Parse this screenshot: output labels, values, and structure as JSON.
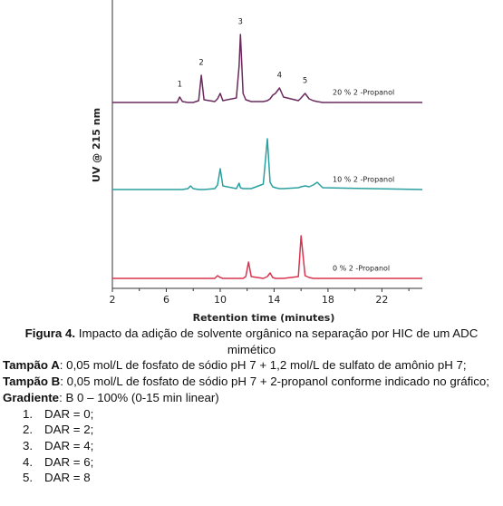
{
  "chart_data": {
    "type": "line",
    "x_label": "Retention time (minutes)",
    "y_label": "UV @ 215 nm",
    "x": [
      2,
      6.8,
      7.0,
      7.2,
      7.6,
      7.8,
      8.0,
      8.4,
      8.6,
      8.8,
      9.6,
      9.8,
      10.0,
      10.2,
      11.2,
      11.4,
      11.5,
      11.7,
      11.9,
      12.1,
      12.3,
      13.2,
      13.5,
      13.7,
      13.9,
      14.1,
      14.4,
      14.7,
      15.8,
      16.0,
      16.3,
      16.6,
      16.9,
      17.2,
      17.6,
      25
    ],
    "series": [
      {
        "name": "20 % 2 -Propanol",
        "color": "#6b2a5e",
        "values": [
          0,
          0,
          6,
          1,
          0,
          0,
          0,
          2,
          30,
          3,
          1,
          4,
          10,
          2,
          5,
          40,
          75,
          10,
          3,
          2,
          1,
          1,
          2,
          4,
          8,
          10,
          16,
          6,
          2,
          5,
          10,
          4,
          2,
          1,
          0,
          0
        ]
      },
      {
        "name": "10 % 2 -Propanol",
        "color": "#2aa0a0",
        "values": [
          0,
          0,
          0,
          0,
          1,
          4,
          1,
          0,
          0,
          0,
          1,
          5,
          23,
          4,
          1,
          7,
          2,
          1,
          1,
          1,
          1,
          6,
          56,
          8,
          3,
          2,
          1,
          1,
          2,
          3,
          4,
          3,
          5,
          8,
          2,
          0
        ]
      },
      {
        "name": "0 % 2 -Propanol",
        "color": "#d9344f",
        "values": [
          0,
          0,
          0,
          0,
          0,
          0,
          0,
          0,
          0,
          0,
          0,
          3,
          1,
          0,
          0,
          0,
          0,
          0,
          2,
          18,
          2,
          0,
          2,
          6,
          1,
          0,
          0,
          0,
          2,
          47,
          3,
          1,
          0,
          0,
          0,
          0
        ]
      }
    ],
    "peak_labels": [
      {
        "text": "1",
        "x": 7.0
      },
      {
        "text": "2",
        "x": 8.6
      },
      {
        "text": "3",
        "x": 11.5
      },
      {
        "text": "4",
        "x": 14.4
      },
      {
        "text": "5",
        "x": 16.3
      }
    ],
    "xlim": [
      2,
      25
    ],
    "xticks": [
      2,
      6,
      10,
      14,
      18,
      22
    ],
    "xminorticks": [
      4,
      8,
      12,
      16,
      20,
      24
    ],
    "ylim": [
      0,
      80
    ]
  },
  "caption": {
    "label": "Figura 4.",
    "text": "Impacto da adição de solvente orgânico na separação por HIC de um ADC mimético"
  },
  "notes": {
    "buffer_a": {
      "label": "Tampão A",
      "text": ": 0,05 mol/L de fosfato de sódio pH 7 + 1,2 mol/L de sulfato de amônio pH 7;"
    },
    "buffer_b": {
      "label": "Tampão B",
      "text": ": 0,05 mol/L de fosfato de sódio pH 7 + 2-propanol conforme indicado no gráfico;"
    },
    "gradient": {
      "label": "Gradiente",
      "text": ": B 0 – 100% (0-15 min linear)"
    },
    "items": [
      {
        "num": "1.",
        "text": "DAR = 0;"
      },
      {
        "num": "2.",
        "text": "DAR = 2;"
      },
      {
        "num": "3.",
        "text": "DAR = 4;"
      },
      {
        "num": "4.",
        "text": "DAR = 6;"
      },
      {
        "num": "5.",
        "text": "DAR = 8"
      }
    ]
  }
}
